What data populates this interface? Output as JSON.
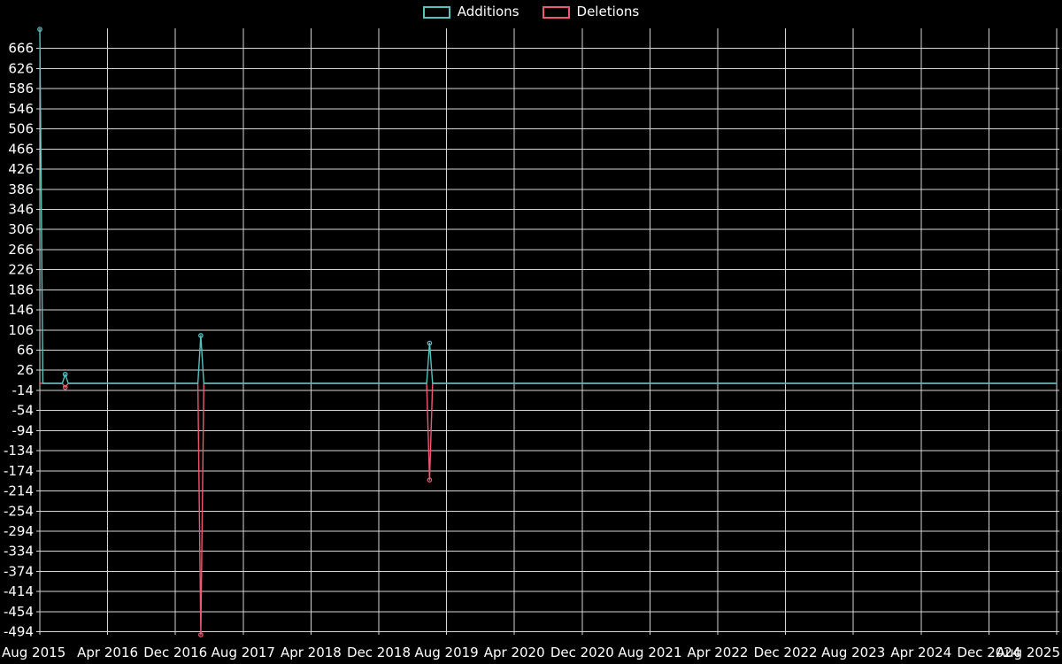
{
  "chart_data": {
    "type": "line",
    "title": "",
    "background": "#000000",
    "grid": true,
    "grid_color": "#d6d6d6",
    "text_color": "#ffffff",
    "legend_position": "top-center",
    "x_span_months": 120,
    "x_tick_step_months": 8,
    "x_tick_labels": [
      "Aug 2015",
      "Apr 2016",
      "Dec 2016",
      "Aug 2017",
      "Apr 2018",
      "Dec 2018",
      "Aug 2019",
      "Apr 2020",
      "Dec 2020",
      "Aug 2021",
      "Apr 2022",
      "Dec 2022",
      "Aug 2023",
      "Apr 2024",
      "Dec 2024",
      "Aug 2025"
    ],
    "y_ticks": [
      666,
      626,
      586,
      546,
      506,
      466,
      426,
      386,
      346,
      306,
      266,
      226,
      186,
      146,
      106,
      66,
      26,
      -14,
      -54,
      -94,
      -134,
      -174,
      -214,
      -254,
      -294,
      -334,
      -374,
      -414,
      -454,
      -494
    ],
    "ylim": [
      -500,
      706
    ],
    "default_value": 0,
    "series": [
      {
        "name": "Additions",
        "color": "#54c3c0",
        "points": [
          {
            "month": "Aug 2015",
            "months_from_start": 0,
            "value": 704
          },
          {
            "month": "Nov 2015",
            "months_from_start": 3,
            "value": 18
          },
          {
            "month": "Mar 2017",
            "months_from_start": 19,
            "value": 95
          },
          {
            "month": "Jun 2019",
            "months_from_start": 46,
            "value": 80
          }
        ]
      },
      {
        "name": "Deletions",
        "color": "#ef5871",
        "points": [
          {
            "month": "Nov 2015",
            "months_from_start": 3,
            "value": -8
          },
          {
            "month": "Mar 2017",
            "months_from_start": 19,
            "value": -500
          },
          {
            "month": "Jun 2019",
            "months_from_start": 46,
            "value": -192
          }
        ]
      }
    ]
  }
}
